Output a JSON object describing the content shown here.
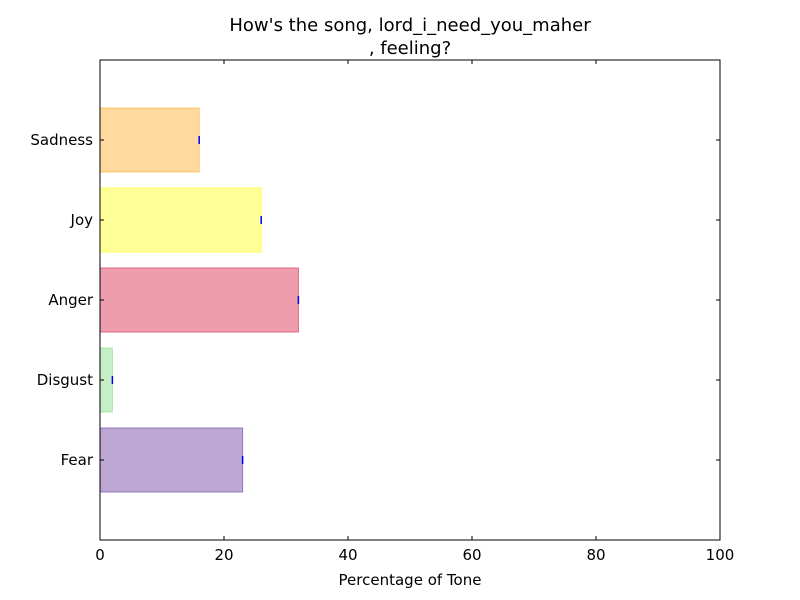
{
  "chart_data": {
    "type": "bar",
    "orientation": "horizontal",
    "title_lines": [
      "How's the song, lord_i_need_you_maher",
      ", feeling?"
    ],
    "xlabel": "Percentage of Tone",
    "ylabel": "",
    "xlim": [
      0,
      100
    ],
    "x_ticks": [
      0,
      20,
      40,
      60,
      80,
      100
    ],
    "categories": [
      "Fear",
      "Disgust",
      "Anger",
      "Joy",
      "Sadness"
    ],
    "values": [
      23,
      2,
      32,
      26,
      16
    ],
    "colors": [
      "#7b52ab",
      "#8ee08e",
      "#dc3c5a",
      "#ffff32",
      "#ffb43c"
    ],
    "grid": false,
    "legend": "none"
  }
}
